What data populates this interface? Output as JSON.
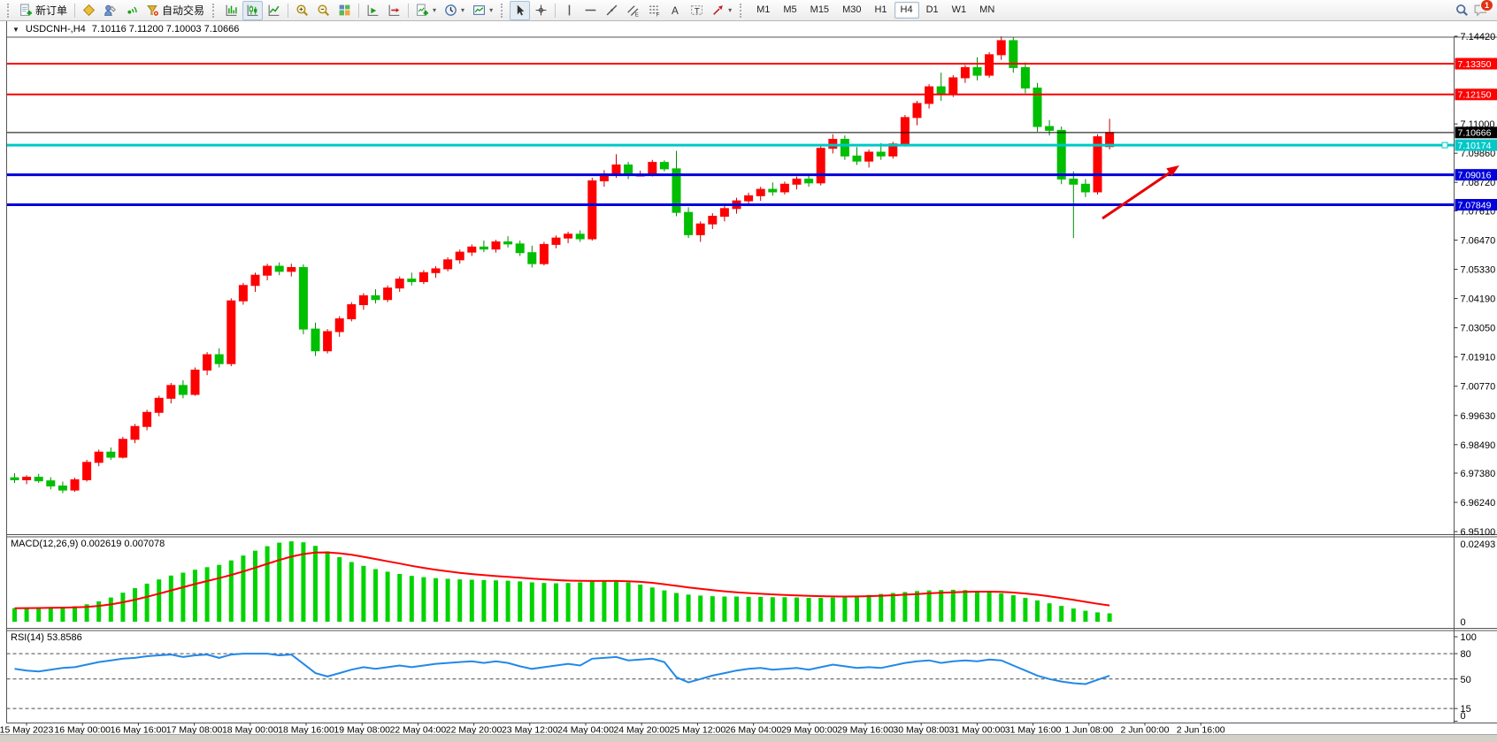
{
  "toolbar": {
    "new_order_label": "新订单",
    "autotrade_label": "自动交易",
    "timeframes": [
      "M1",
      "M5",
      "M15",
      "M30",
      "H1",
      "H4",
      "D1",
      "W1",
      "MN"
    ],
    "active_timeframe": "H4",
    "notification_badge": "1",
    "icon_letters": {
      "channel": "E",
      "fibo": "F",
      "text": "A",
      "label": "T"
    },
    "icons": {
      "dropdown": "▾",
      "symbol_dropdown": "▼"
    }
  },
  "chart": {
    "title_symbol": "USDCNH-,H4",
    "title_ohlc": "7.10116 7.11200 7.10003 7.10666"
  },
  "chart_data": [
    {
      "type": "candlestick",
      "symbol": "USDCNH",
      "timeframe": "H4",
      "up_color": "#FE0000",
      "down_color": "#00BE00",
      "ylim": [
        6.951,
        7.1442
      ],
      "y_ticks": [
        "7.14420",
        "7.11000",
        "7.09860",
        "7.08720",
        "7.07610",
        "7.06470",
        "7.05330",
        "7.04190",
        "7.03050",
        "7.01910",
        "7.00770",
        "6.99630",
        "6.98490",
        "6.97380",
        "6.96240",
        "6.95100"
      ],
      "hlines": [
        {
          "price": 7.1335,
          "label": "7.13350",
          "color": "#FE0000",
          "width": 2
        },
        {
          "price": 7.1215,
          "label": "7.12150",
          "color": "#FE0000",
          "width": 2
        },
        {
          "price": 7.10666,
          "label": "7.10666",
          "color": "#000000",
          "width": 1
        },
        {
          "price": 7.10174,
          "label": "7.10174",
          "color": "#00C8C8",
          "width": 3,
          "handle": true
        },
        {
          "price": 7.09016,
          "label": "7.09016",
          "color": "#0000DC",
          "width": 3
        },
        {
          "price": 7.07849,
          "label": "7.07849",
          "color": "#0000DC",
          "width": 3
        }
      ],
      "current_price": 7.10666,
      "arrow_color": "#E80000",
      "x_labels": [
        "15 May 2023",
        "16 May 00:00",
        "16 May 16:00",
        "17 May 08:00",
        "18 May 00:00",
        "18 May 16:00",
        "19 May 08:00",
        "22 May 04:00",
        "22 May 20:00",
        "23 May 12:00",
        "24 May 04:00",
        "24 May 20:00",
        "25 May 12:00",
        "26 May 04:00",
        "29 May 00:00",
        "29 May 16:00",
        "30 May 08:00",
        "31 May 00:00",
        "31 May 16:00",
        "1 Jun 08:00",
        "2 Jun 00:00",
        "2 Jun 16:00"
      ],
      "candles": [
        [
          6.972,
          6.9738,
          6.97,
          6.9712
        ],
        [
          6.9712,
          6.973,
          6.9695,
          6.9722
        ],
        [
          6.9722,
          6.9735,
          6.97,
          6.9708
        ],
        [
          6.9708,
          6.9722,
          6.9675,
          6.9688
        ],
        [
          6.9688,
          6.9705,
          6.966,
          6.9672
        ],
        [
          6.9672,
          6.972,
          6.9665,
          6.9712
        ],
        [
          6.9712,
          6.979,
          6.9705,
          6.978
        ],
        [
          6.978,
          6.983,
          6.9765,
          6.982
        ],
        [
          6.982,
          6.9838,
          6.979,
          6.98
        ],
        [
          6.98,
          6.988,
          6.9795,
          6.987
        ],
        [
          6.987,
          6.993,
          6.9855,
          6.992
        ],
        [
          6.992,
          6.9985,
          6.9905,
          6.9975
        ],
        [
          6.9975,
          7.004,
          6.996,
          7.003
        ],
        [
          7.003,
          7.009,
          7.001,
          7.008
        ],
        [
          7.008,
          7.01,
          7.003,
          7.0045
        ],
        [
          7.0045,
          7.015,
          7.004,
          7.014
        ],
        [
          7.014,
          7.021,
          7.012,
          7.02
        ],
        [
          7.02,
          7.0225,
          7.015,
          7.0165
        ],
        [
          7.0165,
          7.042,
          7.0155,
          7.041
        ],
        [
          7.041,
          7.048,
          7.0395,
          7.047
        ],
        [
          7.047,
          7.052,
          7.0445,
          7.051
        ],
        [
          7.051,
          7.0555,
          7.049,
          7.0545
        ],
        [
          7.0545,
          7.056,
          7.051,
          7.0525
        ],
        [
          7.0525,
          7.0555,
          7.0505,
          7.054
        ],
        [
          7.054,
          7.0552,
          7.028,
          7.03
        ],
        [
          7.03,
          7.0325,
          7.0195,
          7.0215
        ],
        [
          7.0215,
          7.03,
          7.0205,
          7.029
        ],
        [
          7.029,
          7.035,
          7.027,
          7.034
        ],
        [
          7.034,
          7.0405,
          7.033,
          7.0395
        ],
        [
          7.0395,
          7.044,
          7.0375,
          7.043
        ],
        [
          7.043,
          7.0455,
          7.04,
          7.0415
        ],
        [
          7.0415,
          7.047,
          7.0405,
          7.046
        ],
        [
          7.046,
          7.0505,
          7.0445,
          7.0495
        ],
        [
          7.0495,
          7.052,
          7.047,
          7.0485
        ],
        [
          7.0485,
          7.053,
          7.0475,
          7.052
        ],
        [
          7.052,
          7.0545,
          7.05,
          7.0535
        ],
        [
          7.0535,
          7.058,
          7.0525,
          7.057
        ],
        [
          7.057,
          7.061,
          7.0555,
          7.06
        ],
        [
          7.06,
          7.063,
          7.0585,
          7.062
        ],
        [
          7.062,
          7.0645,
          7.06,
          7.0612
        ],
        [
          7.0612,
          7.0648,
          7.0598,
          7.064
        ],
        [
          7.064,
          7.0662,
          7.0618,
          7.0632
        ],
        [
          7.0632,
          7.0645,
          7.0585,
          7.0598
        ],
        [
          7.0598,
          7.0625,
          7.054,
          7.0555
        ],
        [
          7.0555,
          7.064,
          7.0548,
          7.063
        ],
        [
          7.063,
          7.0665,
          7.0615,
          7.0655
        ],
        [
          7.0655,
          7.068,
          7.0635,
          7.067
        ],
        [
          7.067,
          7.0685,
          7.064,
          7.0652
        ],
        [
          7.0652,
          7.089,
          7.0645,
          7.0878
        ],
        [
          7.0878,
          7.092,
          7.0855,
          7.0905
        ],
        [
          7.0905,
          7.0982,
          7.089,
          7.094
        ],
        [
          7.094,
          7.0952,
          7.0885,
          7.09
        ],
        [
          7.09,
          7.0918,
          7.0895,
          7.0902
        ],
        [
          7.0902,
          7.096,
          7.0895,
          7.095
        ],
        [
          7.095,
          7.0958,
          7.0915,
          7.0925
        ],
        [
          7.0925,
          7.0995,
          7.074,
          7.0755
        ],
        [
          7.0755,
          7.0775,
          7.0655,
          7.0668
        ],
        [
          7.0668,
          7.072,
          7.064,
          7.071
        ],
        [
          7.071,
          7.0752,
          7.069,
          7.074
        ],
        [
          7.074,
          7.0782,
          7.072,
          7.077
        ],
        [
          7.077,
          7.0812,
          7.075,
          7.08
        ],
        [
          7.08,
          7.0832,
          7.078,
          7.082
        ],
        [
          7.082,
          7.0855,
          7.08,
          7.0845
        ],
        [
          7.0845,
          7.0872,
          7.082,
          7.0835
        ],
        [
          7.0835,
          7.0875,
          7.0825,
          7.0865
        ],
        [
          7.0865,
          7.0895,
          7.0845,
          7.0885
        ],
        [
          7.0885,
          7.0905,
          7.0855,
          7.087
        ],
        [
          7.087,
          7.1015,
          7.086,
          7.1005
        ],
        [
          7.1005,
          7.106,
          7.0985,
          7.104
        ],
        [
          7.104,
          7.1055,
          7.096,
          7.0975
        ],
        [
          7.0975,
          7.101,
          7.094,
          7.0955
        ],
        [
          7.0955,
          7.1,
          7.093,
          7.099
        ],
        [
          7.099,
          7.1025,
          7.096,
          7.0975
        ],
        [
          7.0975,
          7.103,
          7.0965,
          7.1022
        ],
        [
          7.1022,
          7.1135,
          7.1012,
          7.1125
        ],
        [
          7.1125,
          7.119,
          7.1095,
          7.118
        ],
        [
          7.118,
          7.1255,
          7.116,
          7.1245
        ],
        [
          7.1245,
          7.13,
          7.119,
          7.1215
        ],
        [
          7.1215,
          7.129,
          7.1205,
          7.128
        ],
        [
          7.128,
          7.133,
          7.126,
          7.132
        ],
        [
          7.132,
          7.136,
          7.127,
          7.129
        ],
        [
          7.129,
          7.138,
          7.128,
          7.137
        ],
        [
          7.137,
          7.1442,
          7.135,
          7.1425
        ],
        [
          7.1425,
          7.1438,
          7.13,
          7.132
        ],
        [
          7.132,
          7.134,
          7.122,
          7.124
        ],
        [
          7.124,
          7.126,
          7.107,
          7.109
        ],
        [
          7.109,
          7.1115,
          7.1055,
          7.1075
        ],
        [
          7.1075,
          7.109,
          7.0865,
          7.0885
        ],
        [
          7.0885,
          7.0915,
          7.0655,
          7.0865
        ],
        [
          7.0865,
          7.0885,
          7.0815,
          7.0835
        ],
        [
          7.0835,
          7.106,
          7.0825,
          7.105
        ],
        [
          7.10116,
          7.112,
          7.10003,
          7.10666
        ]
      ]
    },
    {
      "type": "bar",
      "name": "MACD(12,26,9)",
      "values_label": "0.002619 0.007078",
      "ylim": [
        0,
        0.02493
      ],
      "y_ticks": [
        "0.02493",
        "0"
      ],
      "bar_color": "#00D400",
      "signal_color": "#FE0000",
      "values": [
        0.0042,
        0.0043,
        0.0044,
        0.0045,
        0.0046,
        0.0048,
        0.0054,
        0.0063,
        0.0075,
        0.009,
        0.0104,
        0.0118,
        0.0131,
        0.0143,
        0.0152,
        0.0161,
        0.0169,
        0.0176,
        0.019,
        0.0205,
        0.022,
        0.0234,
        0.0245,
        0.0249,
        0.0246,
        0.0235,
        0.0218,
        0.02,
        0.0185,
        0.0173,
        0.0163,
        0.0155,
        0.0148,
        0.0142,
        0.0138,
        0.0135,
        0.0133,
        0.0131,
        0.013,
        0.0129,
        0.0128,
        0.0127,
        0.0125,
        0.0122,
        0.012,
        0.0119,
        0.012,
        0.0122,
        0.0125,
        0.0127,
        0.0126,
        0.0122,
        0.0115,
        0.0106,
        0.0097,
        0.0089,
        0.0084,
        0.0081,
        0.0079,
        0.0078,
        0.0078,
        0.0077,
        0.0077,
        0.0076,
        0.0076,
        0.0075,
        0.0074,
        0.0074,
        0.0075,
        0.0077,
        0.008,
        0.0083,
        0.0086,
        0.0089,
        0.0092,
        0.0095,
        0.0097,
        0.0098,
        0.0099,
        0.0098,
        0.0096,
        0.0093,
        0.0088,
        0.0082,
        0.0074,
        0.0066,
        0.0057,
        0.0049,
        0.0041,
        0.0034,
        0.0029,
        0.0026
      ]
    },
    {
      "type": "line",
      "name": "RSI(14)",
      "value_label": "53.8586",
      "ylim": [
        0,
        100
      ],
      "levels": [
        80,
        50,
        15
      ],
      "y_ticks": [
        "100",
        "80",
        "50",
        "15",
        "0"
      ],
      "line_color": "#2288E8",
      "values": [
        62,
        60,
        59,
        61,
        63,
        64,
        67,
        70,
        72,
        74,
        75,
        77,
        78,
        79,
        76,
        78,
        79,
        75,
        79,
        80,
        80,
        80,
        78,
        79,
        68,
        57,
        53,
        57,
        61,
        64,
        62,
        64,
        66,
        64,
        66,
        68,
        69,
        70,
        71,
        69,
        71,
        69,
        65,
        62,
        64,
        66,
        68,
        66,
        74,
        75,
        76,
        72,
        73,
        74,
        70,
        52,
        46,
        50,
        54,
        57,
        60,
        62,
        63,
        61,
        62,
        63,
        61,
        64,
        67,
        65,
        63,
        64,
        63,
        66,
        69,
        71,
        72,
        69,
        71,
        72,
        71,
        73,
        72,
        66,
        60,
        54,
        50,
        47,
        45,
        44,
        49,
        53.86
      ]
    }
  ]
}
